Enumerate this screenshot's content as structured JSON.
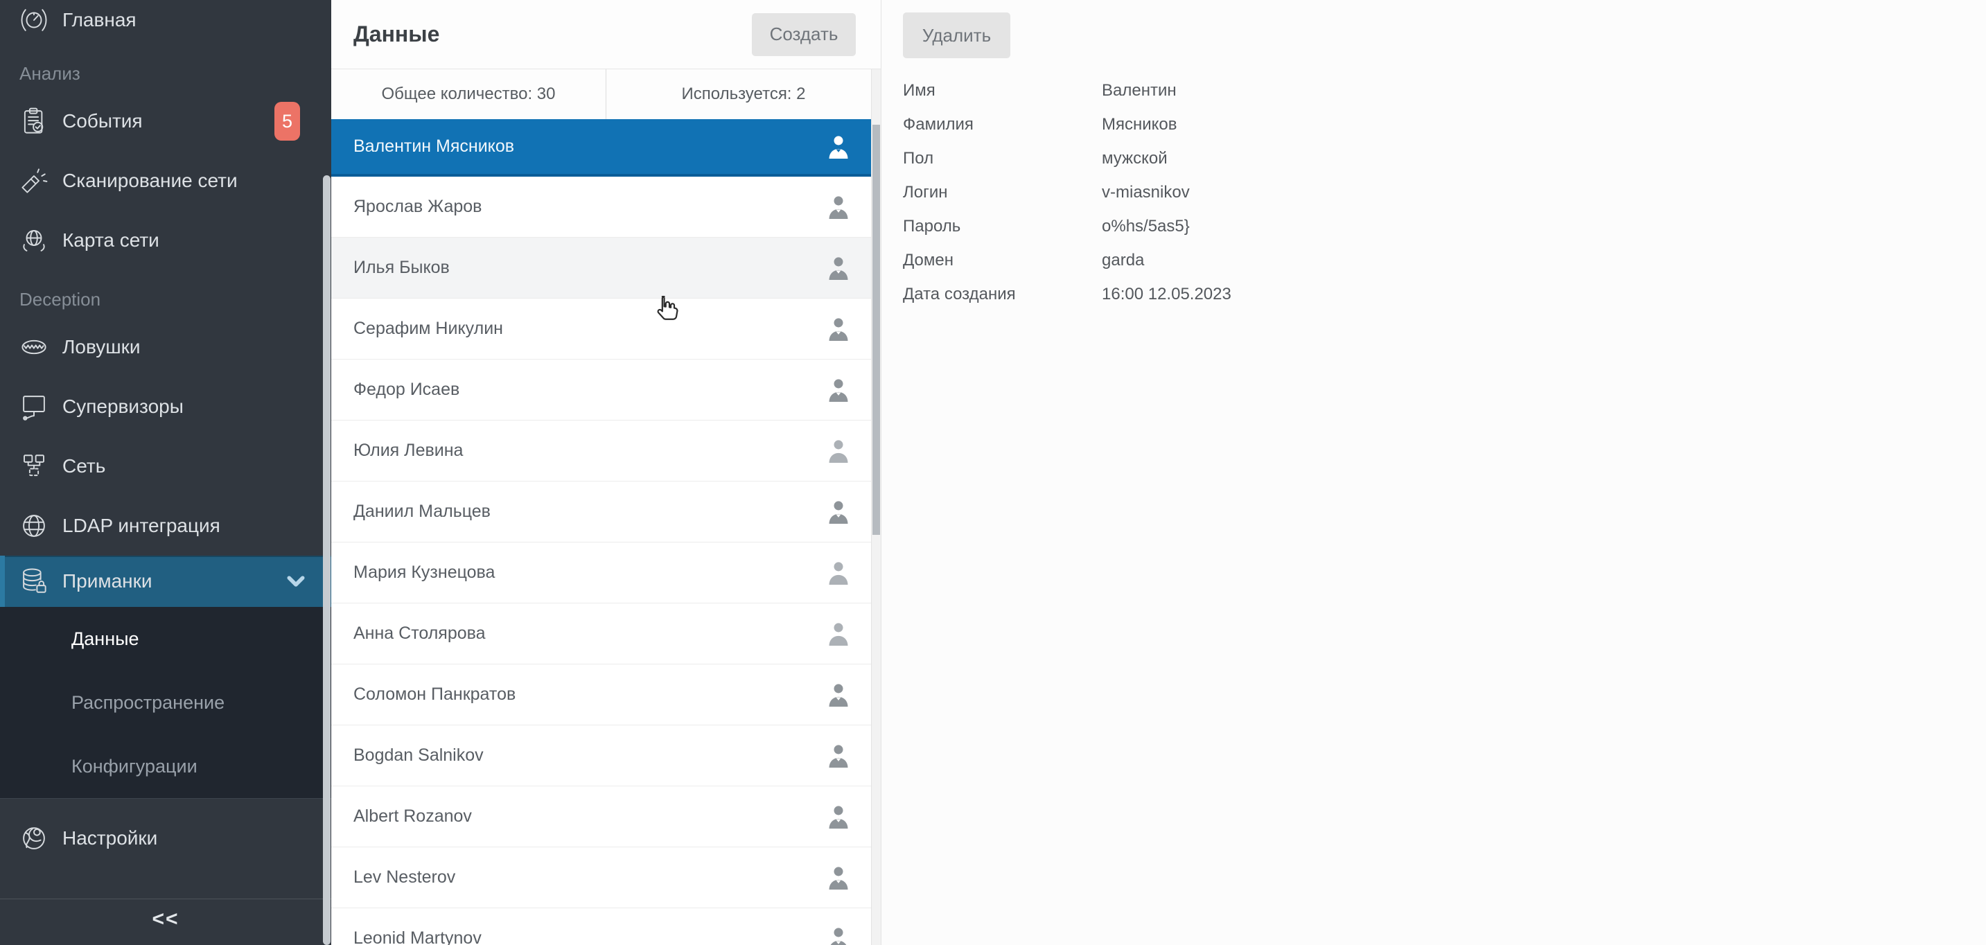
{
  "colors": {
    "selected_row_blue": "#1172b4",
    "active_sidebar_teal": "#215f81",
    "badge_coral": "#ec7366",
    "sidebar_bg": "#31373f",
    "submenu_bg": "#20262f"
  },
  "sidebar": {
    "items": [
      {
        "type": "item",
        "id": "glavnaya",
        "label": "Главная",
        "icon": "gauge-icon"
      },
      {
        "type": "section",
        "id": "analiz",
        "label": "Анализ"
      },
      {
        "type": "item",
        "id": "sobytiya",
        "label": "События",
        "icon": "clipboard-check-icon",
        "badge": "5"
      },
      {
        "type": "item",
        "id": "skanirovanie-seti",
        "label": "Сканирование сети",
        "icon": "flashlight-icon"
      },
      {
        "type": "item",
        "id": "karta-seti",
        "label": "Карта сети",
        "icon": "network-map-icon"
      },
      {
        "type": "section",
        "id": "deception",
        "label": "Deception"
      },
      {
        "type": "item",
        "id": "lovushki",
        "label": "Ловушки",
        "icon": "trap-icon"
      },
      {
        "type": "item",
        "id": "supervizory",
        "label": "Супервизоры",
        "icon": "monitor-icon"
      },
      {
        "type": "item",
        "id": "set",
        "label": "Сеть",
        "icon": "network-nodes-icon"
      },
      {
        "type": "item",
        "id": "ldap-integratsiya",
        "label": "LDAP интеграция",
        "icon": "globe-icon"
      },
      {
        "type": "item",
        "id": "primanki",
        "label": "Приманки",
        "icon": "database-lock-icon",
        "active": true,
        "expandable": true
      },
      {
        "type": "subitem",
        "id": "dannye",
        "label": "Данные",
        "active": true
      },
      {
        "type": "subitem",
        "id": "rasprostranenie",
        "label": "Распространение"
      },
      {
        "type": "subitem",
        "id": "konfiguratsii",
        "label": "Конфигурации"
      },
      {
        "type": "item",
        "id": "nastroyki",
        "label": "Настройки",
        "icon": "settings-icon"
      },
      {
        "type": "collapse",
        "id": "collapse",
        "label": "<<"
      }
    ]
  },
  "list_panel": {
    "title": "Данные",
    "create_button": "Создать",
    "stats": [
      {
        "text": "Общее количество: 30"
      },
      {
        "text": "Используется: 2"
      }
    ],
    "items": [
      {
        "name": "Валентин Мясников",
        "gender": "male",
        "selected": true
      },
      {
        "name": "Ярослав Жаров",
        "gender": "male"
      },
      {
        "name": "Илья Быков",
        "gender": "male",
        "hovered": true
      },
      {
        "name": "Серафим Никулин",
        "gender": "male"
      },
      {
        "name": "Федор Исаев",
        "gender": "male"
      },
      {
        "name": "Юлия Левина",
        "gender": "female"
      },
      {
        "name": "Даниил Мальцев",
        "gender": "male"
      },
      {
        "name": "Мария Кузнецова",
        "gender": "female"
      },
      {
        "name": "Анна Столярова",
        "gender": "female"
      },
      {
        "name": "Соломон Панкратов",
        "gender": "male"
      },
      {
        "name": "Bogdan Salnikov",
        "gender": "male"
      },
      {
        "name": "Albert Rozanov",
        "gender": "male"
      },
      {
        "name": "Lev Nesterov",
        "gender": "male"
      },
      {
        "name": "Leonid Martynov",
        "gender": "male"
      }
    ]
  },
  "detail_panel": {
    "delete_button": "Удалить",
    "fields": [
      {
        "label": "Имя",
        "value": "Валентин"
      },
      {
        "label": "Фамилия",
        "value": "Мясников"
      },
      {
        "label": "Пол",
        "value": "мужской"
      },
      {
        "label": "Логин",
        "value": "v-miasnikov"
      },
      {
        "label": "Пароль",
        "value": "o%hs/5as5}"
      },
      {
        "label": "Домен",
        "value": "garda"
      },
      {
        "label": "Дата создания",
        "value": "16:00 12.05.2023"
      }
    ]
  }
}
